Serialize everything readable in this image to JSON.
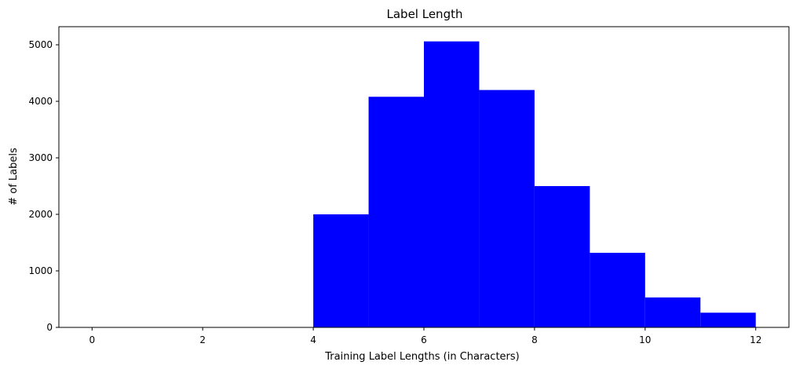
{
  "chart_data": {
    "type": "bar",
    "title": "Label Length",
    "xlabel": "Training Label Lengths (in Characters)",
    "ylabel": "# of Labels",
    "bins": [
      {
        "x0": 4,
        "x1": 5,
        "count": 2000
      },
      {
        "x0": 5,
        "x1": 6,
        "count": 4080
      },
      {
        "x0": 6,
        "x1": 7,
        "count": 5060
      },
      {
        "x0": 7,
        "x1": 8,
        "count": 4200
      },
      {
        "x0": 8,
        "x1": 9,
        "count": 2500
      },
      {
        "x0": 9,
        "x1": 10,
        "count": 1320
      },
      {
        "x0": 10,
        "x1": 11,
        "count": 530
      },
      {
        "x0": 11,
        "x1": 12,
        "count": 260
      }
    ],
    "xlim": [
      -0.6,
      12.6
    ],
    "ylim": [
      0,
      5320
    ],
    "xticks": [
      0,
      2,
      4,
      6,
      8,
      10,
      12
    ],
    "yticks": [
      0,
      1000,
      2000,
      3000,
      4000,
      5000
    ],
    "bar_color": "#0000ff",
    "grid": false
  }
}
